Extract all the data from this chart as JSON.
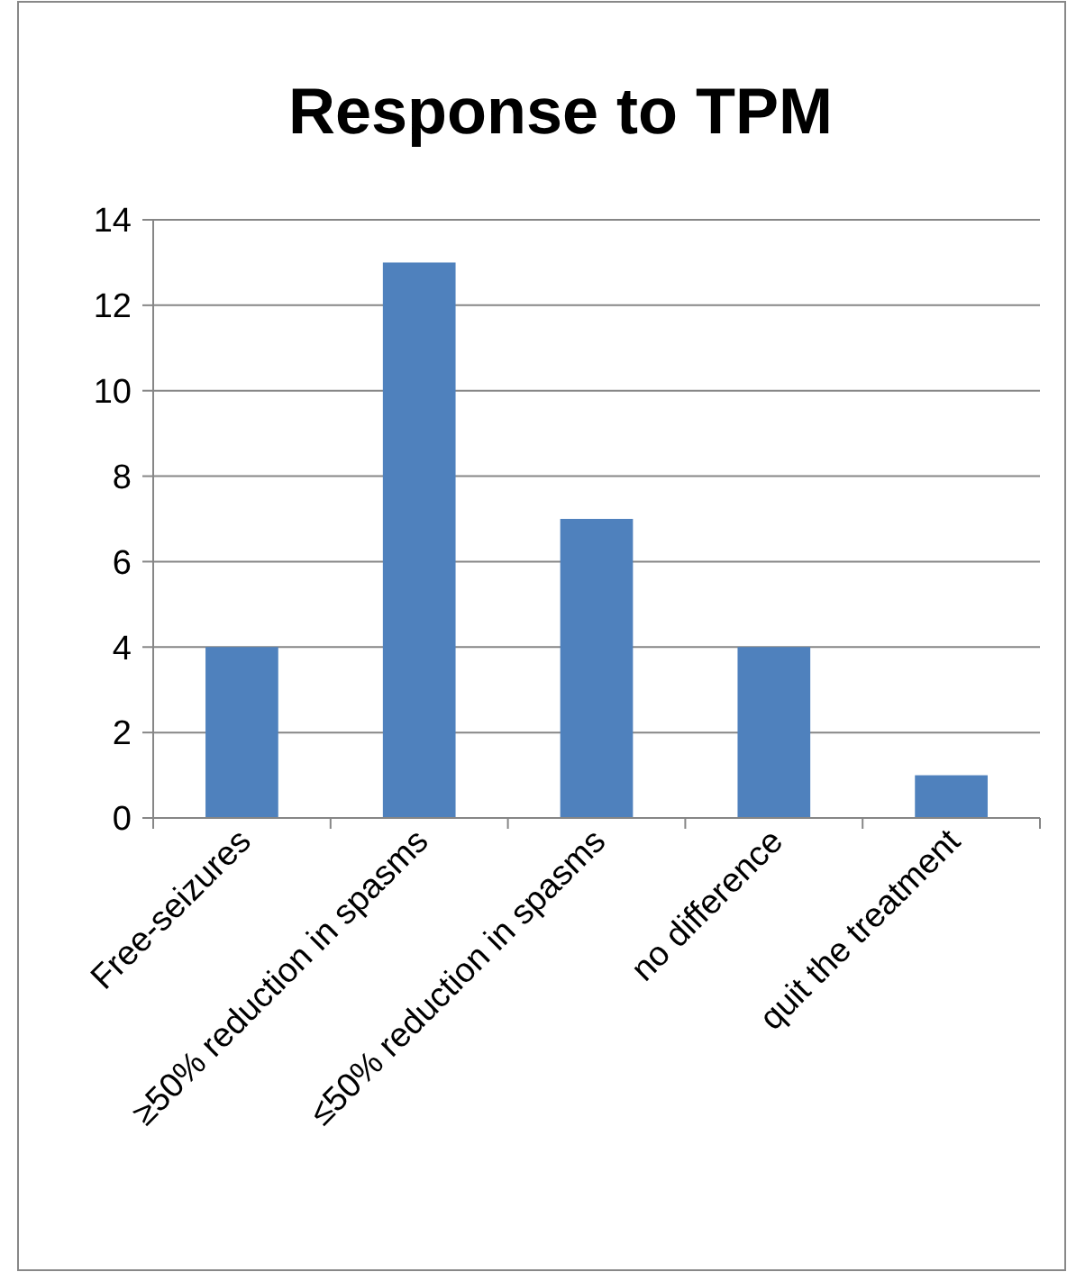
{
  "chart_data": {
    "type": "bar",
    "title": "Response to TPM",
    "categories": [
      "Free-seizures",
      "≥50% reduction in spasms",
      "≤50% reduction in spasms",
      "no difference",
      "quit the treatment"
    ],
    "values": [
      4,
      13,
      7,
      4,
      1
    ],
    "color": "#4f81bd",
    "ylim": [
      0,
      14
    ],
    "yticks": [
      0,
      2,
      4,
      6,
      8,
      10,
      12,
      14
    ],
    "grid": "y"
  }
}
